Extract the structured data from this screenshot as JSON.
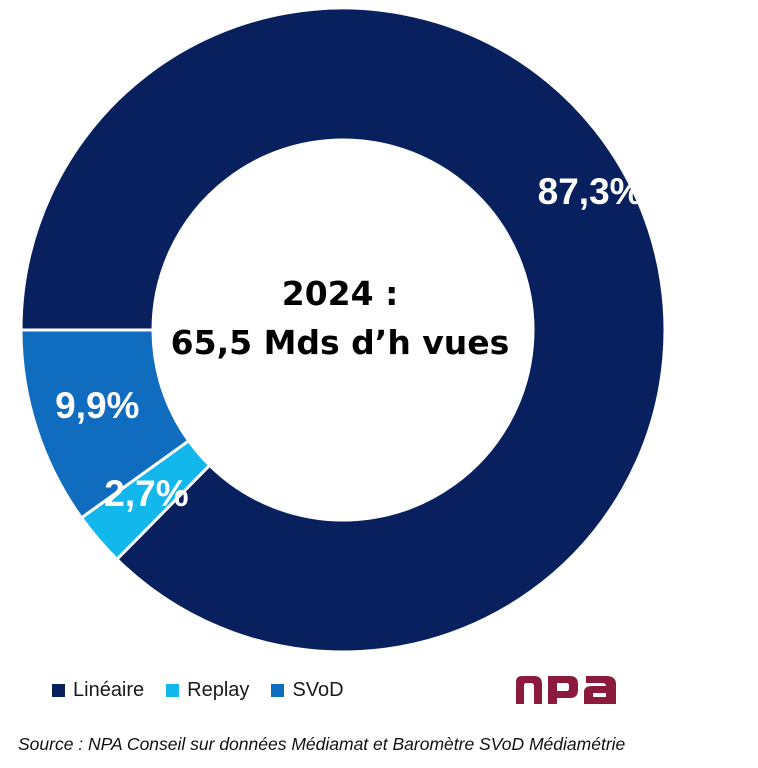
{
  "chart_data": {
    "type": "pie",
    "center_text": [
      "2024 :",
      "65,5 Mds d’h vues"
    ],
    "slices": [
      {
        "name": "Linéaire",
        "value": 87.3,
        "label": "87,3%",
        "color": "#08205e"
      },
      {
        "name": "Replay",
        "value": 2.7,
        "label": "2,7%",
        "color": "#12b7ec"
      },
      {
        "name": "SVoD",
        "value": 9.9,
        "label": "9,9%",
        "color": "#0f6cbf"
      }
    ],
    "legend_position": "bottom-left"
  },
  "logo_text": "npa",
  "source": "Source : NPA Conseil sur données Médiamat et Baromètre SVoD Médiamétrie"
}
